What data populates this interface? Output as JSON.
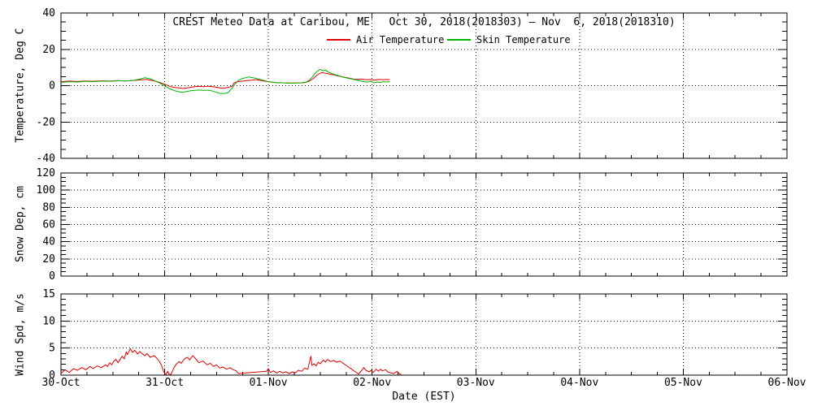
{
  "figure": {
    "title": "CREST Meteo Data at Caribou, ME   Oct 30, 2018(2018303) – Nov  6, 2018(2018310)",
    "background": "#ffffff",
    "axis_color": "#000000",
    "legend": [
      {
        "label": "Air Temperature",
        "color": "#e00000"
      },
      {
        "label": "Skin Temperature",
        "color": "#00b400"
      }
    ]
  },
  "x_axis": {
    "label": "Date (EST)",
    "tick_labels": [
      "30-Oct",
      "31-Oct",
      "01-Nov",
      "02-Nov",
      "03-Nov",
      "04-Nov",
      "05-Nov",
      "06-Nov"
    ],
    "range_days": [
      0,
      7
    ],
    "minor_ticks_per_day": 4
  },
  "chart_data": [
    {
      "type": "line",
      "panel": "temperature",
      "ylabel": "Temperature, Deg C",
      "ylim": [
        -40,
        40
      ],
      "yticks": [
        -40,
        -20,
        0,
        20,
        40
      ],
      "minor_tick_step": 5,
      "grid_yticks": [
        -20,
        0,
        20
      ],
      "grid": true,
      "series": [
        {
          "name": "Air Temperature",
          "color": "#e00000",
          "points": [
            [
              0,
              2.2
            ],
            [
              0.08,
              2.5
            ],
            [
              0.16,
              2.3
            ],
            [
              0.24,
              2.6
            ],
            [
              0.31,
              2.4
            ],
            [
              0.39,
              2.7
            ],
            [
              0.47,
              2.5
            ],
            [
              0.55,
              2.8
            ],
            [
              0.63,
              2.6
            ],
            [
              0.71,
              2.9
            ],
            [
              0.78,
              3.2
            ],
            [
              0.82,
              3.4
            ],
            [
              0.86,
              3.1
            ],
            [
              0.9,
              2.6
            ],
            [
              0.94,
              2
            ],
            [
              0.98,
              1.2
            ],
            [
              1.02,
              0.3
            ],
            [
              1.06,
              -0.6
            ],
            [
              1.1,
              -1
            ],
            [
              1.14,
              -1.3
            ],
            [
              1.18,
              -1.5
            ],
            [
              1.22,
              -1.2
            ],
            [
              1.25,
              -0.9
            ],
            [
              1.29,
              -0.6
            ],
            [
              1.33,
              -0.4
            ],
            [
              1.37,
              -0.6
            ],
            [
              1.41,
              -0.3
            ],
            [
              1.45,
              -0.5
            ],
            [
              1.49,
              -0.8
            ],
            [
              1.53,
              -1.2
            ],
            [
              1.57,
              -1.4
            ],
            [
              1.61,
              -1
            ],
            [
              1.65,
              -0.3
            ],
            [
              1.67,
              1.5
            ],
            [
              1.7,
              2.2
            ],
            [
              1.73,
              2.4
            ],
            [
              1.76,
              2.6
            ],
            [
              1.8,
              2.8
            ],
            [
              1.84,
              3
            ],
            [
              1.88,
              3.3
            ],
            [
              1.92,
              2.9
            ],
            [
              1.96,
              2.5
            ],
            [
              2,
              2.2
            ],
            [
              2.04,
              1.9
            ],
            [
              2.08,
              1.7
            ],
            [
              2.12,
              1.6
            ],
            [
              2.16,
              1.5
            ],
            [
              2.2,
              1.5
            ],
            [
              2.23,
              1.4
            ],
            [
              2.27,
              1.5
            ],
            [
              2.31,
              1.5
            ],
            [
              2.35,
              1.7
            ],
            [
              2.39,
              2.4
            ],
            [
              2.43,
              3.8
            ],
            [
              2.47,
              5.8
            ],
            [
              2.5,
              6.9
            ],
            [
              2.52,
              7.2
            ],
            [
              2.55,
              6.8
            ],
            [
              2.59,
              6.4
            ],
            [
              2.63,
              6
            ],
            [
              2.66,
              5.5
            ],
            [
              2.7,
              5
            ],
            [
              2.74,
              4.6
            ],
            [
              2.78,
              4.1
            ],
            [
              2.82,
              3.6
            ],
            [
              2.86,
              3.4
            ],
            [
              2.9,
              3.6
            ],
            [
              2.94,
              3.3
            ],
            [
              2.98,
              3.4
            ],
            [
              3.02,
              3
            ],
            [
              3.06,
              3.4
            ],
            [
              3.1,
              3.3
            ],
            [
              3.14,
              3.4
            ],
            [
              3.17,
              3.3
            ]
          ]
        },
        {
          "name": "Skin Temperature",
          "color": "#00b400",
          "points": [
            [
              0,
              1.8
            ],
            [
              0.08,
              2.2
            ],
            [
              0.16,
              2
            ],
            [
              0.24,
              2.4
            ],
            [
              0.31,
              2.2
            ],
            [
              0.39,
              2.5
            ],
            [
              0.47,
              2.4
            ],
            [
              0.55,
              2.7
            ],
            [
              0.63,
              2.6
            ],
            [
              0.71,
              3
            ],
            [
              0.76,
              3.6
            ],
            [
              0.81,
              4.4
            ],
            [
              0.86,
              3.8
            ],
            [
              0.9,
              2.8
            ],
            [
              0.94,
              1.8
            ],
            [
              0.98,
              0.6
            ],
            [
              1.02,
              -0.8
            ],
            [
              1.06,
              -2
            ],
            [
              1.1,
              -2.8
            ],
            [
              1.14,
              -3.4
            ],
            [
              1.17,
              -3.7
            ],
            [
              1.21,
              -3.2
            ],
            [
              1.25,
              -2.8
            ],
            [
              1.29,
              -2.6
            ],
            [
              1.33,
              -2.4
            ],
            [
              1.37,
              -2.6
            ],
            [
              1.41,
              -2.5
            ],
            [
              1.45,
              -2.8
            ],
            [
              1.49,
              -3.5
            ],
            [
              1.53,
              -4.2
            ],
            [
              1.57,
              -4.4
            ],
            [
              1.61,
              -3.8
            ],
            [
              1.64,
              -2
            ],
            [
              1.68,
              1
            ],
            [
              1.71,
              2.8
            ],
            [
              1.74,
              3.8
            ],
            [
              1.78,
              4.4
            ],
            [
              1.81,
              4.8
            ],
            [
              1.85,
              4.4
            ],
            [
              1.88,
              4
            ],
            [
              1.92,
              3.4
            ],
            [
              1.96,
              2.8
            ],
            [
              2,
              2.2
            ],
            [
              2.04,
              1.9
            ],
            [
              2.08,
              1.7
            ],
            [
              2.12,
              1.6
            ],
            [
              2.16,
              1.5
            ],
            [
              2.2,
              1.4
            ],
            [
              2.24,
              1.4
            ],
            [
              2.28,
              1.5
            ],
            [
              2.32,
              1.6
            ],
            [
              2.36,
              1.9
            ],
            [
              2.39,
              2.8
            ],
            [
              2.42,
              4.5
            ],
            [
              2.45,
              6.8
            ],
            [
              2.48,
              8.3
            ],
            [
              2.5,
              9
            ],
            [
              2.53,
              8.2
            ],
            [
              2.55,
              8.6
            ],
            [
              2.58,
              7.4
            ],
            [
              2.61,
              6.7
            ],
            [
              2.64,
              6.1
            ],
            [
              2.68,
              5.4
            ],
            [
              2.72,
              4.7
            ],
            [
              2.76,
              4.2
            ],
            [
              2.8,
              3.7
            ],
            [
              2.84,
              3.2
            ],
            [
              2.88,
              2.7
            ],
            [
              2.92,
              2.2
            ],
            [
              2.95,
              2
            ],
            [
              2.99,
              2.4
            ],
            [
              3.02,
              1.6
            ],
            [
              3.05,
              2
            ],
            [
              3.08,
              1.7
            ],
            [
              3.11,
              2.2
            ],
            [
              3.14,
              2
            ],
            [
              3.17,
              2.3
            ]
          ]
        }
      ]
    },
    {
      "type": "line",
      "panel": "snow-depth",
      "ylabel": "Snow Dep, cm",
      "ylim": [
        0,
        120
      ],
      "yticks": [
        0,
        20,
        40,
        60,
        80,
        100,
        120
      ],
      "minor_tick_step": 5,
      "grid_yticks": [
        20,
        40,
        60,
        80,
        100
      ],
      "grid": true,
      "series": [
        {
          "name": "Snow Depth",
          "color": "#e00000",
          "points": []
        }
      ]
    },
    {
      "type": "line",
      "panel": "wind-speed",
      "ylabel": "Wind Spd, m/s",
      "ylim": [
        0,
        15
      ],
      "yticks": [
        0,
        5,
        10,
        15
      ],
      "minor_tick_step": 1,
      "grid_yticks": [
        5,
        10
      ],
      "grid": true,
      "series": [
        {
          "name": "Wind Speed",
          "color": "#e00000",
          "points": [
            [
              0,
              0.3
            ],
            [
              0.04,
              1
            ],
            [
              0.08,
              0.5
            ],
            [
              0.12,
              1.2
            ],
            [
              0.16,
              0.9
            ],
            [
              0.2,
              1.4
            ],
            [
              0.24,
              1
            ],
            [
              0.28,
              1.6
            ],
            [
              0.31,
              1.2
            ],
            [
              0.35,
              1.7
            ],
            [
              0.39,
              1.4
            ],
            [
              0.43,
              1.9
            ],
            [
              0.45,
              1.6
            ],
            [
              0.47,
              2.3
            ],
            [
              0.49,
              1.9
            ],
            [
              0.51,
              2.6
            ],
            [
              0.53,
              2.9
            ],
            [
              0.55,
              2.3
            ],
            [
              0.59,
              3.5
            ],
            [
              0.61,
              3
            ],
            [
              0.63,
              4.3
            ],
            [
              0.64,
              3.8
            ],
            [
              0.67,
              4.9
            ],
            [
              0.69,
              4.2
            ],
            [
              0.71,
              4.6
            ],
            [
              0.74,
              3.9
            ],
            [
              0.76,
              4.4
            ],
            [
              0.78,
              4
            ],
            [
              0.81,
              3.6
            ],
            [
              0.83,
              4
            ],
            [
              0.86,
              3.3
            ],
            [
              0.9,
              3.6
            ],
            [
              0.93,
              3
            ],
            [
              0.95,
              2.5
            ],
            [
              0.97,
              1.8
            ],
            [
              0.99,
              0.6
            ],
            [
              1.01,
              0.1
            ],
            [
              1.03,
              0.7
            ],
            [
              1.04,
              0.2
            ],
            [
              1.06,
              0.1
            ],
            [
              1.09,
              1.4
            ],
            [
              1.11,
              2
            ],
            [
              1.14,
              2.5
            ],
            [
              1.16,
              2.2
            ],
            [
              1.19,
              3
            ],
            [
              1.22,
              3.3
            ],
            [
              1.24,
              2.8
            ],
            [
              1.27,
              3.6
            ],
            [
              1.3,
              3
            ],
            [
              1.33,
              2.3
            ],
            [
              1.37,
              2.6
            ],
            [
              1.41,
              1.9
            ],
            [
              1.44,
              2.2
            ],
            [
              1.47,
              1.6
            ],
            [
              1.5,
              1.9
            ],
            [
              1.53,
              1.3
            ],
            [
              1.56,
              1.5
            ],
            [
              1.6,
              1.1
            ],
            [
              1.63,
              1.4
            ],
            [
              1.66,
              1
            ],
            [
              1.69,
              0.8
            ],
            [
              1.71,
              0.3
            ],
            [
              1.98,
              0.7
            ],
            [
              2,
              1.2
            ],
            [
              2.02,
              0.5
            ],
            [
              2.05,
              0.8
            ],
            [
              2.08,
              0.4
            ],
            [
              2.11,
              0.7
            ],
            [
              2.14,
              0.4
            ],
            [
              2.17,
              0.6
            ],
            [
              2.2,
              0.3
            ],
            [
              2.23,
              0.6
            ],
            [
              2.26,
              0.4
            ],
            [
              2.29,
              0.9
            ],
            [
              2.32,
              0.7
            ],
            [
              2.35,
              1.3
            ],
            [
              2.38,
              1.1
            ],
            [
              2.41,
              3.5
            ],
            [
              2.42,
              1.8
            ],
            [
              2.44,
              2.1
            ],
            [
              2.46,
              1.7
            ],
            [
              2.48,
              2.4
            ],
            [
              2.5,
              2.1
            ],
            [
              2.53,
              2.8
            ],
            [
              2.55,
              2.4
            ],
            [
              2.57,
              2.9
            ],
            [
              2.6,
              2.5
            ],
            [
              2.63,
              2.7
            ],
            [
              2.66,
              2.4
            ],
            [
              2.69,
              2.6
            ],
            [
              2.72,
              2.2
            ],
            [
              2.75,
              1.8
            ],
            [
              2.78,
              1.4
            ],
            [
              2.81,
              1
            ],
            [
              2.84,
              0.6
            ],
            [
              2.87,
              0.2
            ],
            [
              2.9,
              0.9
            ],
            [
              2.92,
              1.4
            ],
            [
              2.94,
              0.9
            ],
            [
              2.97,
              0.6
            ],
            [
              2.99,
              0.9
            ],
            [
              3.01,
              0.5
            ],
            [
              3.04,
              1.1
            ],
            [
              3.06,
              0.7
            ],
            [
              3.08,
              1.1
            ],
            [
              3.1,
              0.8
            ],
            [
              3.13,
              1
            ],
            [
              3.15,
              0.6
            ],
            [
              3.18,
              0.4
            ],
            [
              3.21,
              0.3
            ],
            [
              3.24,
              0.7
            ],
            [
              3.26,
              0.3
            ],
            [
              3.28,
              0.1
            ]
          ]
        }
      ]
    }
  ]
}
